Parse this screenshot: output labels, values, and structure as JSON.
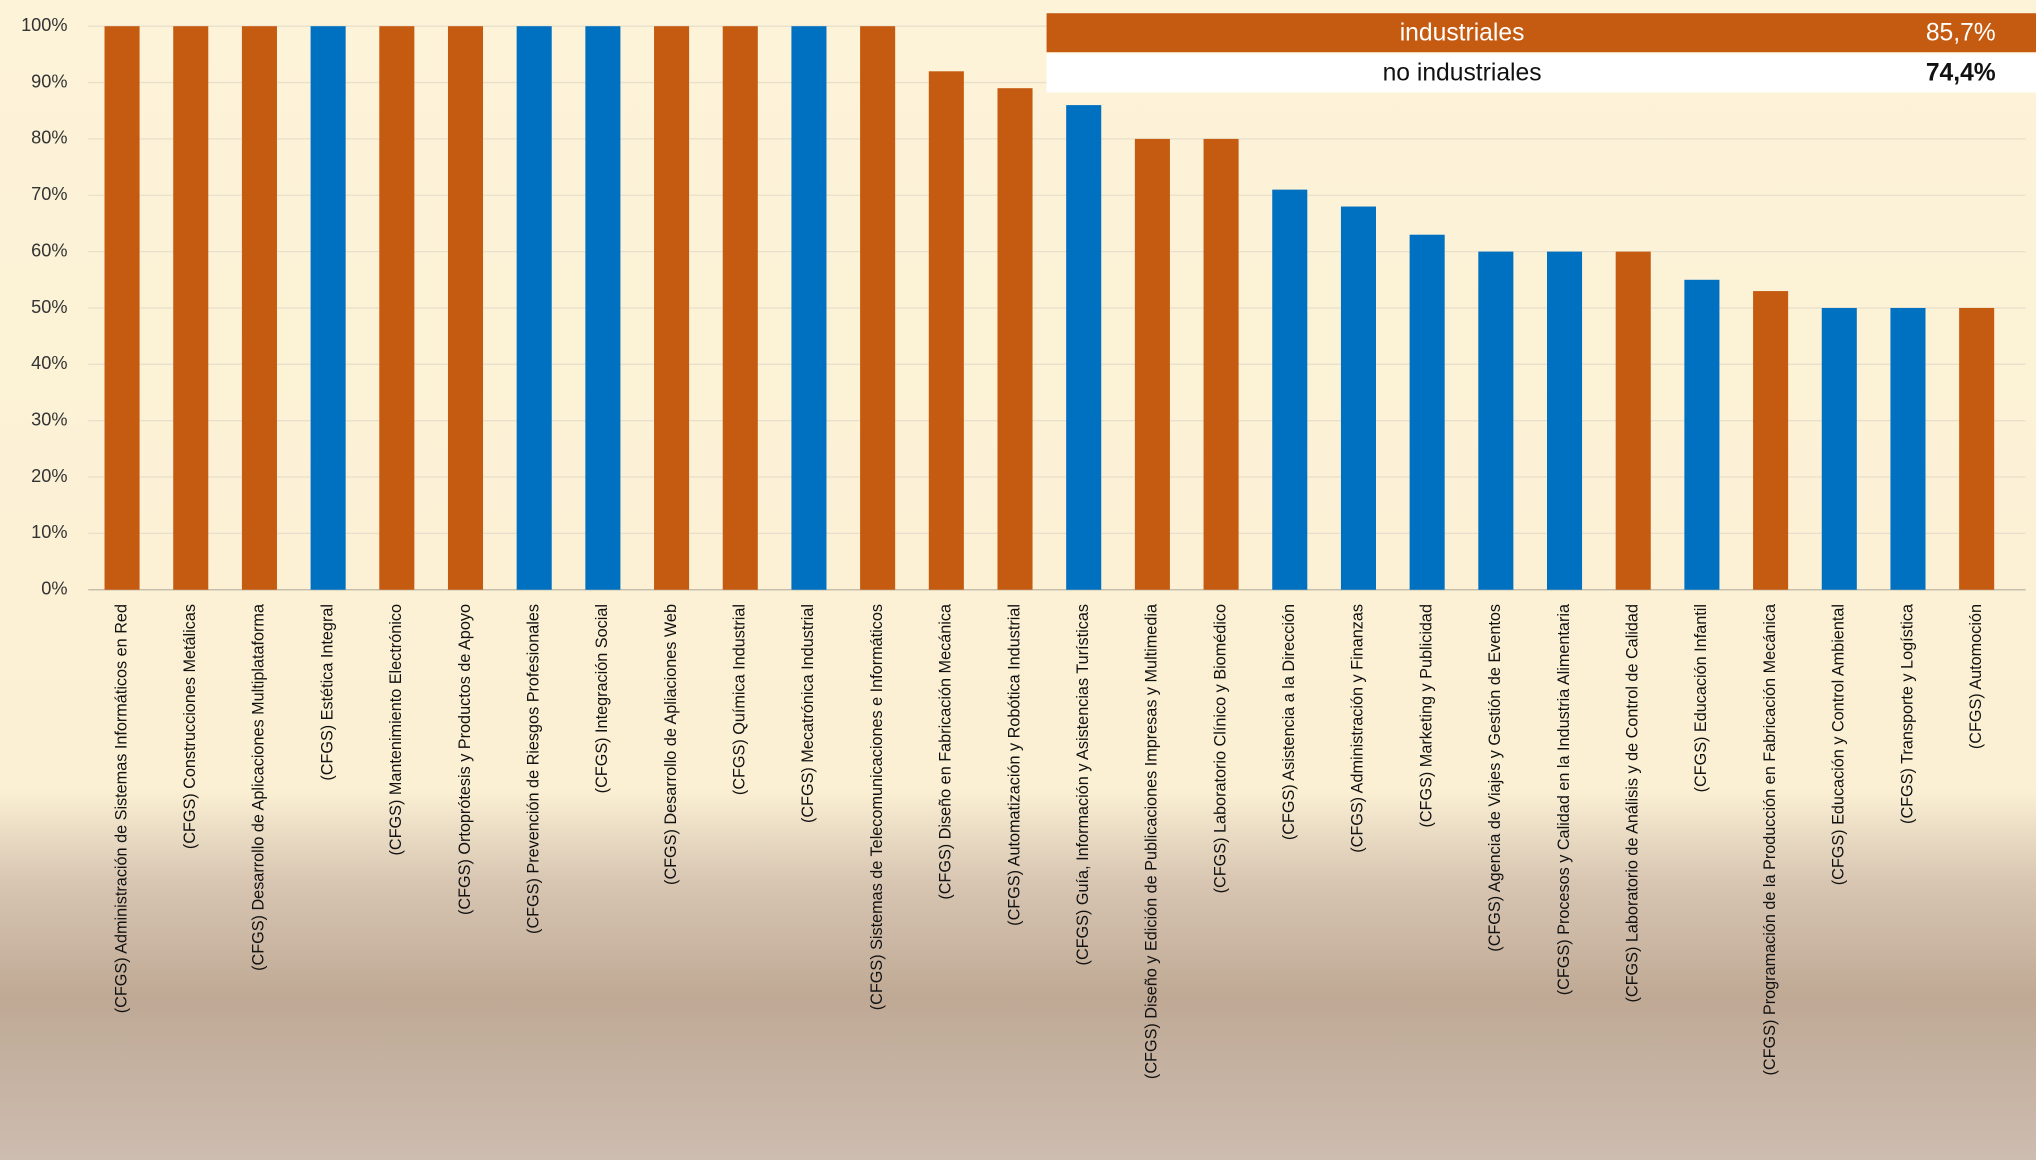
{
  "chart_data": {
    "type": "bar",
    "categories": [
      "(CFGS) Administración de Sistemas Informáticos en Red",
      "(CFGS) Construcciones Metálicas",
      "(CFGS) Desarrollo de Aplicaciones Multiplataforma",
      "(CFGS) Estética Integral",
      "(CFGS) Mantenimiento Electrónico",
      "(CFGS) Ortoprótesis y Productos de Apoyo",
      "(CFGS) Prevención de Riesgos Profesionales",
      "(CFGS) Integración Social",
      "(CFGS) Desarrollo de Apliaciones Web",
      "(CFGS) Química Industrial",
      "(CFGS) Mecatrónica Industrial",
      "(CFGS) Sistemas de Telecomunicaciones e Informáticos",
      "(CFGS) Diseño en Fabricación Mecánica",
      "(CFGS) Automatización y Robótica Industrial",
      "(CFGS) Guía, Información y Asistencias Turísticas",
      "(CFGS) Diseño y Edición de Publicaciones Impresas y Multimedia",
      "(CFGS) Laboratorio Clínico y Biomédico",
      "(CFGS) Asistencia a la Dirección",
      "(CFGS) Administración y Finanzas",
      "(CFGS) Marketing y Publicidad",
      "(CFGS) Agencia de Viajes y Gestión de Eventos",
      "(CFGS) Procesos y Calidad en la Industria Alimentaria",
      "(CFGS) Laboratorio de Análisis y de Control de Calidad",
      "(CFGS) Educación Infantil",
      "(CFGS) Programación de la Producción en Fabricación Mecánica",
      "(CFGS) Educación y Control Ambiental",
      "(CFGS) Transporte y Logística",
      "(CFGS) Automoción"
    ],
    "values": [
      100,
      100,
      100,
      100,
      100,
      100,
      100,
      100,
      100,
      100,
      100,
      100,
      92,
      89,
      86,
      80,
      80,
      71,
      68,
      63,
      60,
      60,
      60,
      55,
      53,
      50,
      50,
      50
    ],
    "colors": [
      "#c55a11",
      "#c55a11",
      "#c55a11",
      "#0070c0",
      "#c55a11",
      "#c55a11",
      "#0070c0",
      "#0070c0",
      "#c55a11",
      "#c55a11",
      "#0070c0",
      "#c55a11",
      "#c55a11",
      "#c55a11",
      "#0070c0",
      "#c55a11",
      "#c55a11",
      "#0070c0",
      "#0070c0",
      "#0070c0",
      "#0070c0",
      "#0070c0",
      "#c55a11",
      "#0070c0",
      "#c55a11",
      "#0070c0",
      "#0070c0",
      "#c55a11"
    ],
    "ylim": [
      0,
      100
    ],
    "yticks": [
      {
        "value": 0,
        "label": "0%"
      },
      {
        "value": 10,
        "label": "10%"
      },
      {
        "value": 20,
        "label": "20%"
      },
      {
        "value": 30,
        "label": "30%"
      },
      {
        "value": 40,
        "label": "40%"
      },
      {
        "value": 50,
        "label": "50%"
      },
      {
        "value": 60,
        "label": "60%"
      },
      {
        "value": 70,
        "label": "70%"
      },
      {
        "value": 80,
        "label": "80%"
      },
      {
        "value": 90,
        "label": "90%"
      },
      {
        "value": 100,
        "label": "100%"
      }
    ],
    "grid": true,
    "summary_table": {
      "rows": [
        [
          "industriales",
          "85,7%"
        ],
        [
          "no industriales",
          "74,4%"
        ]
      ],
      "row_colors": [
        "#c55a11",
        "#ffffff"
      ]
    }
  }
}
